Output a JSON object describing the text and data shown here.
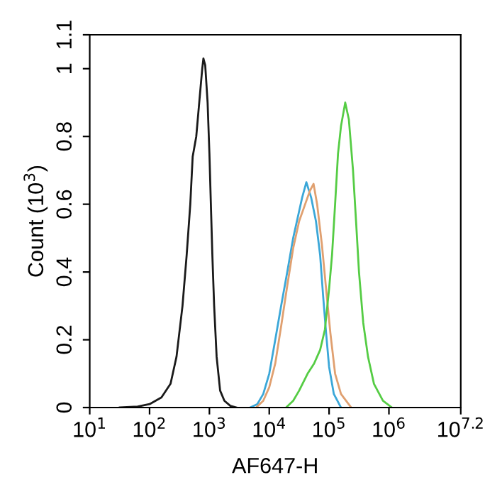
{
  "chart_data": {
    "type": "line",
    "xlabel": "AF647-H",
    "ylabel": "Count (10$^{3}$)",
    "log": "x",
    "grid": false,
    "legend": false,
    "marker": "none",
    "line_style": "solid",
    "xlim": [
      10,
      15848931.92
    ],
    "xticks": [
      {
        "value": 10,
        "label": "10$^{1}$"
      },
      {
        "value": 100,
        "label": "10$^{2}$"
      },
      {
        "value": 1000,
        "label": "10$^{3}$"
      },
      {
        "value": 10000,
        "label": "10$^{4}$"
      },
      {
        "value": 100000,
        "label": "10$^{5}$"
      },
      {
        "value": 1000000,
        "label": "10$^{6}$"
      },
      {
        "value": 15848931.92,
        "label": "10$^{7.2}$"
      }
    ],
    "ylim": [
      0,
      1.1
    ],
    "yticks": [
      0,
      0.2,
      0.4,
      0.6,
      0.8,
      1,
      1.1
    ],
    "series": [
      {
        "color": "#1a1a1a",
        "x": [
          31.6,
          63.1,
          100,
          158,
          224,
          282,
          355,
          417,
          479,
          525,
          603,
          676,
          759,
          794,
          851,
          933,
          1000,
          1070,
          1120,
          1200,
          1320,
          1510,
          1780,
          2240,
          2820
        ],
        "values": [
          0,
          0.003,
          0.01,
          0.03,
          0.07,
          0.15,
          0.3,
          0.45,
          0.6,
          0.74,
          0.8,
          0.9,
          1.0,
          1.03,
          1.01,
          0.9,
          0.75,
          0.57,
          0.45,
          0.3,
          0.15,
          0.05,
          0.02,
          0.005,
          0
        ]
      },
      {
        "color": "#3ba7d8",
        "x": [
          4790,
          6310,
          7940,
          10000,
          12600,
          15800,
          20000,
          25100,
          31600,
          35500,
          41700,
          50100,
          60300,
          70800,
          79400,
          89100,
          100000,
          120000,
          158000
        ],
        "values": [
          0,
          0.01,
          0.04,
          0.1,
          0.2,
          0.3,
          0.4,
          0.5,
          0.58,
          0.62,
          0.665,
          0.62,
          0.55,
          0.45,
          0.33,
          0.22,
          0.12,
          0.04,
          0
        ]
      },
      {
        "color": "#e0a070",
        "x": [
          6030,
          7940,
          10000,
          12600,
          15800,
          20000,
          25100,
          31600,
          39800,
          47900,
          55000,
          63100,
          75900,
          89100,
          105000,
          126000,
          158000,
          234000
        ],
        "values": [
          0,
          0.02,
          0.06,
          0.13,
          0.24,
          0.36,
          0.47,
          0.55,
          0.6,
          0.64,
          0.66,
          0.6,
          0.48,
          0.35,
          0.22,
          0.1,
          0.04,
          0
        ]
      },
      {
        "color": "#55cc44",
        "x": [
          19100,
          25100,
          31600,
          43700,
          56200,
          70800,
          85100,
          100000,
          112000,
          126000,
          141000,
          158000,
          186000,
          214000,
          251000,
          282000,
          316000,
          372000,
          447000,
          562000,
          794000,
          1120000
        ],
        "values": [
          0,
          0.02,
          0.05,
          0.1,
          0.13,
          0.17,
          0.23,
          0.35,
          0.45,
          0.6,
          0.75,
          0.83,
          0.9,
          0.85,
          0.7,
          0.55,
          0.4,
          0.25,
          0.15,
          0.07,
          0.02,
          0
        ]
      }
    ]
  }
}
